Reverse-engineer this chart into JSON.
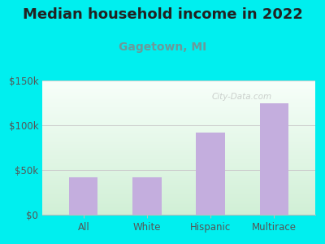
{
  "title": "Median household income in 2022",
  "subtitle": "Gagetown, MI",
  "categories": [
    "All",
    "White",
    "Hispanic",
    "Multirace"
  ],
  "values": [
    42000,
    42000,
    92000,
    125000
  ],
  "bar_color": "#c4aede",
  "background_color": "#00EFEF",
  "plot_bg_top_left": "#f0fff8",
  "plot_bg_bottom": "#d8f0e0",
  "title_color": "#222222",
  "subtitle_color": "#6a9a9a",
  "tick_color": "#555555",
  "axis_color": "#bbbbbb",
  "ylim": [
    0,
    150000
  ],
  "yticks": [
    0,
    50000,
    100000,
    150000
  ],
  "ytick_labels": [
    "$0",
    "$50k",
    "$100k",
    "$150k"
  ],
  "watermark": "City-Data.com",
  "title_fontsize": 13,
  "subtitle_fontsize": 10,
  "tick_fontsize": 8.5
}
